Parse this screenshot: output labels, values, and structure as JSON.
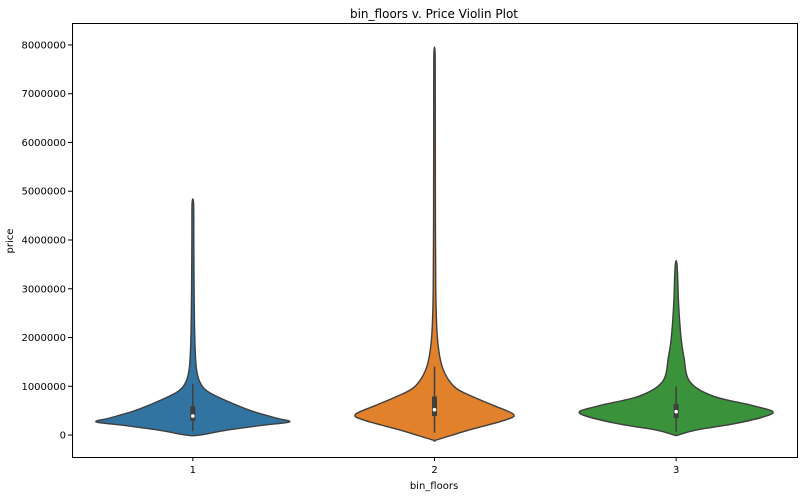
{
  "chart_data": {
    "type": "violin",
    "title": "bin_floors v. Price Violin Plot",
    "xlabel": "bin_floors",
    "ylabel": "price",
    "categories": [
      "1",
      "2",
      "3"
    ],
    "ylim": [
      -450000,
      8450000
    ],
    "yticks": [
      0,
      1000000,
      2000000,
      3000000,
      4000000,
      5000000,
      6000000,
      7000000,
      8000000
    ],
    "ytick_labels": [
      "0",
      "1000000",
      "2000000",
      "3000000",
      "4000000",
      "5000000",
      "6000000",
      "7000000",
      "8000000"
    ],
    "grid": false,
    "series": [
      {
        "category": "1",
        "color": "#3274a1",
        "min": 0,
        "max": 4750000,
        "q1": 290000,
        "median": 390000,
        "q3": 590000,
        "whisker_low": 80000,
        "whisker_high": 1050000,
        "density": [
          [
            0,
            0.07
          ],
          [
            100000,
            0.35
          ],
          [
            200000,
            0.72
          ],
          [
            270000,
            1.0
          ],
          [
            350000,
            0.86
          ],
          [
            500000,
            0.6
          ],
          [
            700000,
            0.35
          ],
          [
            900000,
            0.15
          ],
          [
            1100000,
            0.07
          ],
          [
            1400000,
            0.035
          ],
          [
            2000000,
            0.02
          ],
          [
            3000000,
            0.013
          ],
          [
            4000000,
            0.01
          ],
          [
            4750000,
            0.008
          ]
        ]
      },
      {
        "category": "2",
        "color": "#e1812c",
        "min": -100000,
        "max": 7850000,
        "q1": 390000,
        "median": 520000,
        "q3": 790000,
        "whisker_low": 50000,
        "whisker_high": 1400000,
        "density": [
          [
            -100000,
            0.02
          ],
          [
            100000,
            0.35
          ],
          [
            300000,
            0.72
          ],
          [
            420000,
            0.82
          ],
          [
            600000,
            0.62
          ],
          [
            800000,
            0.38
          ],
          [
            1000000,
            0.2
          ],
          [
            1400000,
            0.08
          ],
          [
            2000000,
            0.03
          ],
          [
            3000000,
            0.013
          ],
          [
            5000000,
            0.009
          ],
          [
            7000000,
            0.008
          ],
          [
            7850000,
            0.006
          ]
        ]
      },
      {
        "category": "3",
        "color": "#3a923a",
        "min": 0,
        "max": 3480000,
        "q1": 350000,
        "median": 480000,
        "q3": 640000,
        "whisker_low": 70000,
        "whisker_high": 1000000,
        "density": [
          [
            0,
            0.02
          ],
          [
            100000,
            0.2
          ],
          [
            250000,
            0.65
          ],
          [
            450000,
            1.0
          ],
          [
            600000,
            0.8
          ],
          [
            800000,
            0.38
          ],
          [
            1100000,
            0.14
          ],
          [
            1600000,
            0.08
          ],
          [
            2000000,
            0.05
          ],
          [
            2700000,
            0.025
          ],
          [
            3480000,
            0.01
          ]
        ]
      }
    ]
  }
}
